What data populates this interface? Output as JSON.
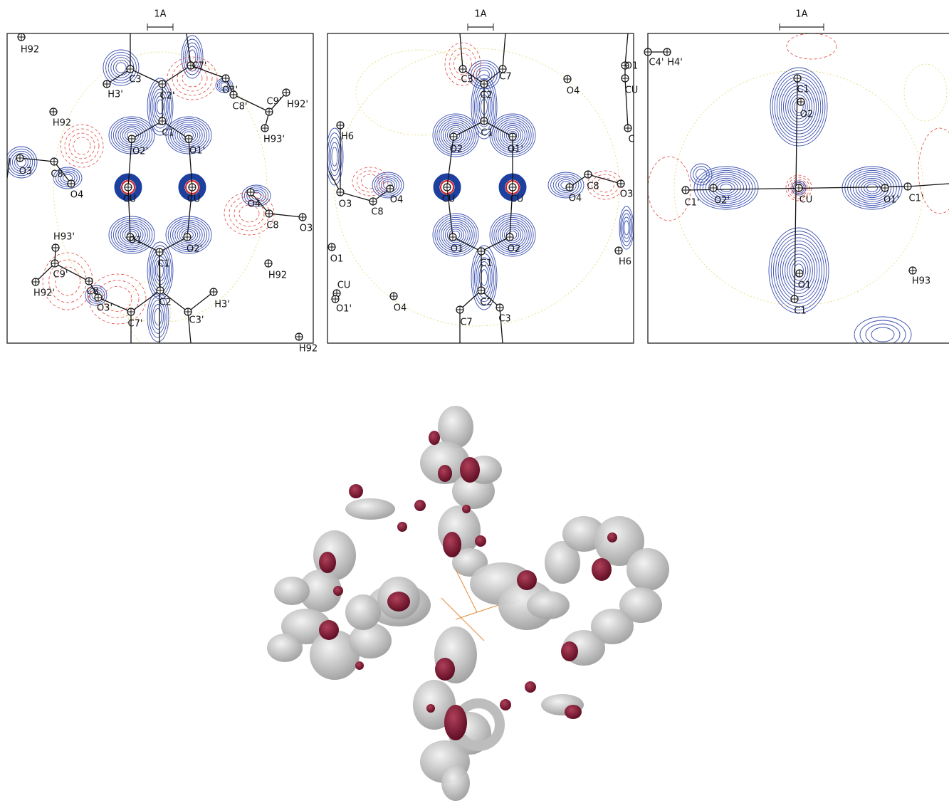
{
  "panels": [
    {
      "scale_label": "1A",
      "atoms": [
        "H92",
        "C3",
        "C7'",
        "O3'",
        "H3'",
        "C2'",
        "C9'",
        "H92'",
        "C8'",
        "H92",
        "C1",
        "H93'",
        "O2'",
        "O1'",
        "O3",
        "C8",
        "O4",
        "CU",
        "CU",
        "O4",
        "C8",
        "O3",
        "O1",
        "O2'",
        "C1",
        "H93'",
        "C9'",
        "H92",
        "H92'",
        "C8",
        "O3'",
        "C2",
        "H3'",
        "C7'",
        "C3'",
        "H92"
      ]
    },
    {
      "scale_label": "1A",
      "atoms": [
        "C3",
        "C7",
        "C2",
        "O4",
        "O1",
        "CU",
        "C1",
        "H6",
        "O2",
        "O1'",
        "C",
        "O3",
        "C8",
        "O4",
        "CU",
        "CU",
        "C8",
        "O4",
        "O3",
        "O1",
        "O2",
        "C1",
        "O1",
        "H6",
        "CU",
        "O1'",
        "O4",
        "C2",
        "C7",
        "C3"
      ]
    },
    {
      "scale_label": "1A",
      "atoms": [
        "C4'",
        "H4'",
        "C1",
        "O2",
        "C1'",
        "O2'",
        "CU",
        "O1'",
        "C1'",
        "O1",
        "H93",
        "C1"
      ]
    }
  ]
}
